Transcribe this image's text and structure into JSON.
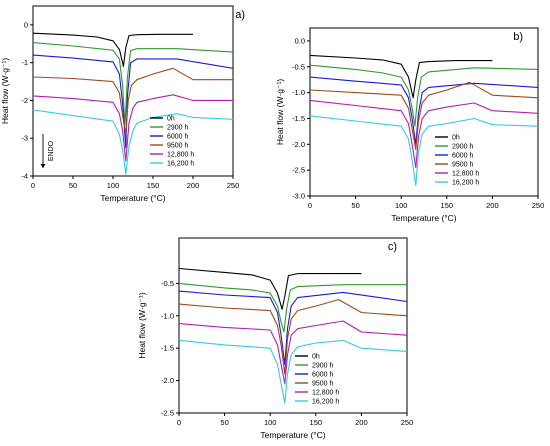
{
  "legend_labels": [
    "0h",
    "2900 h",
    "6000 h",
    "9500 h",
    "12,800 h",
    "16,200 h"
  ],
  "series_colors": [
    "#000000",
    "#2e9a2e",
    "#1a1ad6",
    "#9c4a1c",
    "#b01fb0",
    "#37c9e8"
  ],
  "chart_data": [
    {
      "type": "line",
      "panel_label": "a)",
      "xlabel": "Temperature (°C)",
      "ylabel": "Heat flow (W·g⁻¹)",
      "xlim": [
        0,
        250
      ],
      "ylim": [
        -4,
        0.5
      ],
      "xticks": [
        "0",
        "50",
        "100",
        "150",
        "200",
        "250"
      ],
      "yticks": [
        "0",
        "-1",
        "-2",
        "-3",
        "-4"
      ],
      "annotation": "ENDO",
      "legend_position": "lower-right",
      "series": [
        {
          "name": "0h",
          "x": [
            0,
            50,
            80,
            100,
            108,
            113,
            116,
            120,
            130,
            160,
            200
          ],
          "y": [
            -0.22,
            -0.27,
            -0.32,
            -0.42,
            -0.65,
            -1.1,
            -0.6,
            -0.28,
            -0.26,
            -0.25,
            -0.25
          ]
        },
        {
          "name": "2900 h",
          "x": [
            0,
            50,
            100,
            108,
            112,
            115,
            118,
            122,
            130,
            180,
            250
          ],
          "y": [
            -0.47,
            -0.56,
            -0.67,
            -0.9,
            -1.6,
            -2.65,
            -1.4,
            -0.68,
            -0.63,
            -0.63,
            -0.72
          ]
        },
        {
          "name": "6000 h",
          "x": [
            0,
            50,
            100,
            108,
            112,
            116,
            118,
            122,
            130,
            180,
            250
          ],
          "y": [
            -0.8,
            -0.88,
            -0.98,
            -1.3,
            -2.1,
            -3.25,
            -1.9,
            -1.0,
            -0.9,
            -0.9,
            -1.15
          ]
        },
        {
          "name": "9500 h",
          "x": [
            0,
            50,
            100,
            108,
            112,
            116,
            119,
            123,
            130,
            150,
            175,
            200,
            250
          ],
          "y": [
            -1.38,
            -1.42,
            -1.5,
            -1.8,
            -2.4,
            -2.9,
            -2.0,
            -1.6,
            -1.45,
            -1.3,
            -1.15,
            -1.45,
            -1.45
          ]
        },
        {
          "name": "12,800 h",
          "x": [
            0,
            50,
            100,
            108,
            112,
            116,
            120,
            125,
            130,
            150,
            175,
            200,
            250
          ],
          "y": [
            -1.88,
            -1.95,
            -2.05,
            -2.35,
            -2.8,
            -3.6,
            -2.6,
            -2.2,
            -2.05,
            -1.95,
            -1.85,
            -2.0,
            -2.0
          ]
        },
        {
          "name": "16,200 h",
          "x": [
            0,
            50,
            100,
            108,
            112,
            116,
            120,
            125,
            130,
            150,
            180,
            200,
            250
          ],
          "y": [
            -2.25,
            -2.4,
            -2.55,
            -2.9,
            -3.3,
            -3.95,
            -3.2,
            -2.8,
            -2.6,
            -2.45,
            -2.35,
            -2.45,
            -2.5
          ]
        }
      ]
    },
    {
      "type": "line",
      "panel_label": "b)",
      "xlabel": "Temperature (°C)",
      "ylabel": "Heat flow (W·g⁻¹)",
      "xlim": [
        0,
        250
      ],
      "ylim": [
        -3.0,
        0.25
      ],
      "xticks": [
        "0",
        "50",
        "100",
        "150",
        "200",
        "250"
      ],
      "yticks": [
        "0.0",
        "-0.5",
        "-1.0",
        "-1.5",
        "-2.0",
        "-2.5",
        "-3.0"
      ],
      "legend_position": "lower-right",
      "series": [
        {
          "name": "0h",
          "x": [
            0,
            50,
            80,
            100,
            108,
            113,
            116,
            120,
            130,
            160,
            200
          ],
          "y": [
            -0.28,
            -0.33,
            -0.37,
            -0.45,
            -0.7,
            -1.1,
            -0.75,
            -0.42,
            -0.4,
            -0.38,
            -0.38
          ]
        },
        {
          "name": "2900 h",
          "x": [
            0,
            50,
            80,
            100,
            108,
            112,
            115,
            118,
            122,
            130,
            180,
            250
          ],
          "y": [
            -0.47,
            -0.55,
            -0.62,
            -0.7,
            -0.95,
            -1.3,
            -1.65,
            -1.1,
            -0.7,
            -0.6,
            -0.52,
            -0.55
          ]
        },
        {
          "name": "6000 h",
          "x": [
            0,
            50,
            100,
            108,
            112,
            116,
            119,
            123,
            130,
            180,
            250
          ],
          "y": [
            -0.7,
            -0.78,
            -0.85,
            -1.1,
            -1.5,
            -2.0,
            -1.4,
            -1.0,
            -0.9,
            -0.82,
            -0.9
          ]
        },
        {
          "name": "9500 h",
          "x": [
            0,
            50,
            100,
            108,
            112,
            116,
            119,
            123,
            130,
            150,
            175,
            200,
            250
          ],
          "y": [
            -0.95,
            -1.0,
            -1.05,
            -1.3,
            -1.7,
            -2.1,
            -1.55,
            -1.2,
            -1.05,
            -0.95,
            -0.8,
            -1.05,
            -1.1
          ]
        },
        {
          "name": "12,800 h",
          "x": [
            0,
            50,
            100,
            108,
            112,
            116,
            119,
            123,
            130,
            150,
            180,
            200,
            250
          ],
          "y": [
            -1.15,
            -1.25,
            -1.35,
            -1.6,
            -2.0,
            -2.45,
            -1.85,
            -1.5,
            -1.35,
            -1.28,
            -1.2,
            -1.35,
            -1.4
          ]
        },
        {
          "name": "16,200 h",
          "x": [
            0,
            50,
            100,
            108,
            112,
            116,
            119,
            123,
            130,
            150,
            180,
            200,
            250
          ],
          "y": [
            -1.45,
            -1.55,
            -1.65,
            -1.9,
            -2.3,
            -2.8,
            -2.15,
            -1.8,
            -1.65,
            -1.6,
            -1.5,
            -1.62,
            -1.65
          ]
        }
      ]
    },
    {
      "type": "line",
      "panel_label": "c)",
      "xlabel": "Temperature (°C)",
      "ylabel": "Heat flow (W·g⁻¹)",
      "xlim": [
        0,
        250
      ],
      "ylim": [
        -2.5,
        0.2
      ],
      "xticks": [
        "0",
        "50",
        "100",
        "150",
        "200",
        "250"
      ],
      "yticks": [
        "-0.5",
        "-1.0",
        "-1.5",
        "-2.0",
        "-2.5"
      ],
      "legend_position": "lower-right",
      "series": [
        {
          "name": "0h",
          "x": [
            0,
            50,
            80,
            100,
            108,
            113,
            116,
            120,
            130,
            160,
            200
          ],
          "y": [
            -0.27,
            -0.33,
            -0.37,
            -0.45,
            -0.65,
            -0.9,
            -0.7,
            -0.38,
            -0.35,
            -0.35,
            -0.35
          ]
        },
        {
          "name": "2900 h",
          "x": [
            0,
            50,
            80,
            100,
            108,
            112,
            115,
            118,
            122,
            130,
            180,
            250
          ],
          "y": [
            -0.5,
            -0.57,
            -0.6,
            -0.65,
            -0.85,
            -1.1,
            -1.25,
            -0.9,
            -0.6,
            -0.55,
            -0.52,
            -0.52
          ]
        },
        {
          "name": "6000 h",
          "x": [
            0,
            50,
            100,
            108,
            112,
            116,
            119,
            123,
            130,
            180,
            250
          ],
          "y": [
            -0.62,
            -0.68,
            -0.72,
            -0.95,
            -1.3,
            -1.75,
            -1.2,
            -0.85,
            -0.72,
            -0.64,
            -0.78
          ]
        },
        {
          "name": "9500 h",
          "x": [
            0,
            50,
            100,
            108,
            112,
            116,
            119,
            123,
            130,
            150,
            175,
            200,
            250
          ],
          "y": [
            -0.82,
            -0.88,
            -0.92,
            -1.15,
            -1.45,
            -1.9,
            -1.35,
            -1.05,
            -0.92,
            -0.85,
            -0.75,
            -0.95,
            -1.0
          ]
        },
        {
          "name": "12,800 h",
          "x": [
            0,
            50,
            100,
            108,
            112,
            116,
            119,
            123,
            130,
            150,
            180,
            200,
            250
          ],
          "y": [
            -1.12,
            -1.18,
            -1.22,
            -1.45,
            -1.75,
            -2.05,
            -1.6,
            -1.3,
            -1.2,
            -1.15,
            -1.08,
            -1.25,
            -1.3
          ]
        },
        {
          "name": "16,200 h",
          "x": [
            0,
            50,
            100,
            108,
            112,
            116,
            119,
            123,
            130,
            150,
            180,
            200,
            250
          ],
          "y": [
            -1.38,
            -1.45,
            -1.5,
            -1.75,
            -2.05,
            -2.35,
            -1.9,
            -1.6,
            -1.48,
            -1.42,
            -1.38,
            -1.5,
            -1.55
          ]
        }
      ]
    }
  ]
}
